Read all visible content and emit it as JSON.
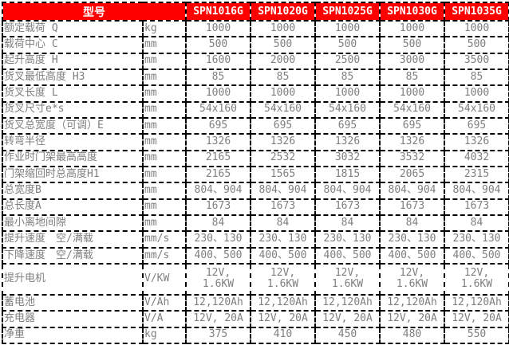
{
  "colors": {
    "header_bg": "#fe0000",
    "header_text": "#ffffff",
    "body_text": "#7f7f7f",
    "border": "#000000",
    "cell_bg": "#ffffff"
  },
  "table": {
    "header": {
      "model_label": "型号",
      "models": [
        "SPN1016G",
        "SPN1020G",
        "SPN1025G",
        "SPN1030G",
        "SPN1035G"
      ]
    },
    "rows": [
      {
        "label": "额定载荷 Q",
        "unit": "kg",
        "values": [
          "1000",
          "1000",
          "1000",
          "1000",
          "1000"
        ]
      },
      {
        "label": "载荷中心 C",
        "unit": "mm",
        "values": [
          "500",
          "500",
          "500",
          "500",
          "500"
        ]
      },
      {
        "label": "起升高度 H",
        "unit": "mm",
        "values": [
          "1600",
          "2000",
          "2500",
          "3000",
          "3500"
        ]
      },
      {
        "label": "货叉最低高度 H3",
        "unit": "mm",
        "values": [
          "85",
          "85",
          "85",
          "85",
          "85"
        ]
      },
      {
        "label": "货叉长度 L",
        "unit": "mm",
        "values": [
          "1000",
          "1000",
          "1000",
          "1000",
          "1000"
        ]
      },
      {
        "label": "货叉尺寸e*s",
        "unit": "mm",
        "values": [
          "54x160",
          "54x160",
          "54x160",
          "54x160",
          "54x160"
        ]
      },
      {
        "label": "货叉总宽度（可调）E",
        "unit": "mm",
        "values": [
          "695",
          "695",
          "695",
          "695",
          "695"
        ]
      },
      {
        "label": "转弯半径",
        "unit": "mm",
        "values": [
          "1326",
          "1326",
          "1326",
          "1326",
          "1326"
        ]
      },
      {
        "label": "作业时门架最高高度",
        "unit": "mm",
        "values": [
          "2165",
          "2532",
          "3032",
          "3532",
          "4032"
        ]
      },
      {
        "label": "门架缩回时总高度H1",
        "unit": "mm",
        "values": [
          "2165",
          "1565",
          "1815",
          "2065",
          "2315"
        ]
      },
      {
        "label": "总宽度B",
        "unit": "mm",
        "values": [
          "804、904",
          "804、904",
          "804、904",
          "804、904",
          "804、904"
        ]
      },
      {
        "label": "总长度A",
        "unit": "mm",
        "values": [
          "1673",
          "1673",
          "1673",
          "1673",
          "1673"
        ]
      },
      {
        "label": "最小离地间隙",
        "unit": "mm",
        "values": [
          "84",
          "84",
          "84",
          "84",
          "84"
        ]
      },
      {
        "label": "提升速度　空/满载",
        "unit": "mm/s",
        "values": [
          "230、130",
          "230、130",
          "230、130",
          "230、130",
          "230、130"
        ]
      },
      {
        "label": "下降速度　空/满载",
        "unit": "mm/s",
        "values": [
          "400、500",
          "400、500",
          "400、500",
          "400、500",
          "400、500"
        ]
      },
      {
        "label": "提升电机",
        "unit": "V/KW",
        "tall": true,
        "values": [
          "12V, 1.6KW",
          "12V,\n1.6KW",
          "12V,\n1.6KW",
          "12V,\n1.6KW",
          "12V,\n1.6KW"
        ]
      },
      {
        "label": "蓄电池",
        "unit": "V/Ah",
        "values": [
          "12,120Ah",
          "12,120Ah",
          "12,120Ah",
          "12,120Ah",
          "12,120Ah"
        ]
      },
      {
        "label": "充电器",
        "unit": "V/A",
        "values": [
          "12V, 20A",
          "12V, 20A",
          "12V, 20A",
          "12V, 20A",
          "12V, 20A"
        ]
      },
      {
        "label": "净重",
        "unit": "kg",
        "values": [
          "375",
          "410",
          "450",
          "480",
          "550"
        ]
      }
    ]
  }
}
